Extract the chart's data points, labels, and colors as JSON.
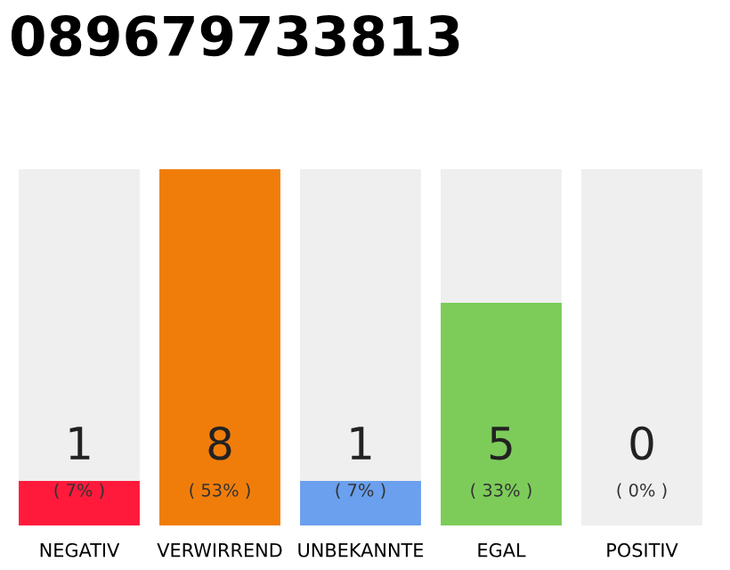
{
  "chart_data": {
    "type": "bar",
    "title": "089679733813",
    "categories": [
      "NEGATIV",
      "VERWIRREND",
      "UNBEKANNTE",
      "EGAL",
      "POSITIV"
    ],
    "values": [
      1,
      8,
      1,
      5,
      0
    ],
    "colors": [
      "#ff1a3c",
      "#f07d0a",
      "#6aa0ee",
      "#7dcc5a",
      "#cccccc"
    ],
    "ylim": [
      0,
      8
    ],
    "bands": [
      {
        "axis": "y",
        "from": 0,
        "to": 8,
        "color": "#efefef"
      }
    ],
    "tick_labels": "x",
    "grid": false,
    "legend": false,
    "data_labels": true,
    "annotations": [
      "( 7% )",
      "( 53% )",
      "( 7% )",
      "( 33% )",
      "( 0% )"
    ]
  }
}
